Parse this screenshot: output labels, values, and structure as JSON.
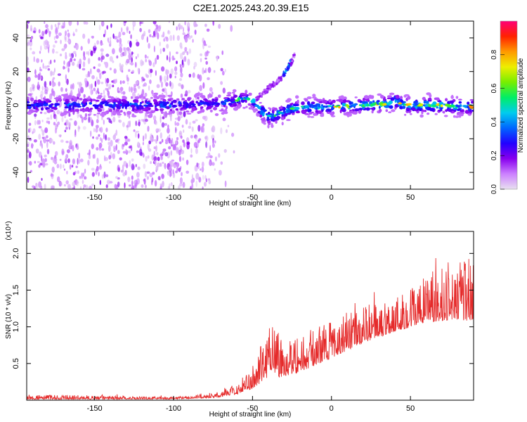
{
  "title": "C2E1.2025.243.20.39.E15",
  "colors": {
    "snr_line": "#e52b2b",
    "frame": "#000000",
    "colorbar_stops": [
      "#e8e0f0",
      "#cc80ff",
      "#8800ee",
      "#2200ff",
      "#0066ff",
      "#00ccee",
      "#00ee66",
      "#77ee00",
      "#eeee00",
      "#ff9900",
      "#ff2200",
      "#ff0077"
    ]
  },
  "chart_data": [
    {
      "type": "heatmap",
      "name": "spectrogram",
      "xlabel": "Height of straight line (km)",
      "ylabel": "Frequency (Hz)",
      "xlim": [
        -193,
        90
      ],
      "ylim": [
        -50,
        50
      ],
      "xticks": [
        -150,
        -100,
        -50,
        0,
        50
      ],
      "xtick_labels": [
        "-150",
        "-100",
        "-50",
        "0",
        "50"
      ],
      "yticks": [
        -40,
        -20,
        0,
        20,
        40
      ],
      "ytick_labels": [
        "-40",
        "-20",
        "0",
        "20",
        "40"
      ],
      "colorbar": {
        "label": "Normalized spectral amplitude",
        "range": [
          0,
          1
        ],
        "ticks": [
          0.0,
          0.2,
          0.4,
          0.6,
          0.8
        ],
        "tick_labels": [
          "0.0",
          "0.2",
          "0.4",
          "0.6",
          "0.8"
        ]
      },
      "main_trace": [
        {
          "x": -193,
          "y": 0
        },
        {
          "x": -150,
          "y": 0
        },
        {
          "x": -100,
          "y": 0
        },
        {
          "x": -70,
          "y": 1
        },
        {
          "x": -55,
          "y": 4
        },
        {
          "x": -48,
          "y": 2
        },
        {
          "x": -45,
          "y": -3
        },
        {
          "x": -40,
          "y": -7
        },
        {
          "x": -35,
          "y": -6
        },
        {
          "x": -25,
          "y": -2
        },
        {
          "x": -15,
          "y": -1
        },
        {
          "x": 0,
          "y": -1
        },
        {
          "x": 20,
          "y": 0
        },
        {
          "x": 38,
          "y": 1
        },
        {
          "x": 40,
          "y": 3
        },
        {
          "x": 45,
          "y": 0
        },
        {
          "x": 60,
          "y": 0
        },
        {
          "x": 90,
          "y": -1
        }
      ],
      "secondary_trace": [
        {
          "x": -48,
          "y": 3
        },
        {
          "x": -40,
          "y": 10
        },
        {
          "x": -32,
          "y": 16
        },
        {
          "x": -28,
          "y": 22
        },
        {
          "x": -23,
          "y": 30
        }
      ]
    },
    {
      "type": "line",
      "name": "snr",
      "xlabel": "Height of straight line (km)",
      "ylabel": "SNR (10 * v/v)",
      "multiplier_label": "(x10⁴)",
      "xlim": [
        -193,
        90
      ],
      "ylim": [
        0,
        2.3
      ],
      "xticks": [
        -150,
        -100,
        -50,
        0,
        50
      ],
      "xtick_labels": [
        "-150",
        "-100",
        "-50",
        "0",
        "50"
      ],
      "yticks": [
        0.5,
        1.0,
        1.5,
        2.0
      ],
      "ytick_labels": [
        "0.5",
        "1.0",
        "1.5",
        "2.0"
      ],
      "envelope": [
        {
          "x": -193,
          "base": 0.02,
          "amp": 0.06
        },
        {
          "x": -100,
          "base": 0.02,
          "amp": 0.03
        },
        {
          "x": -75,
          "base": 0.04,
          "amp": 0.05
        },
        {
          "x": -60,
          "base": 0.1,
          "amp": 0.12
        },
        {
          "x": -50,
          "base": 0.2,
          "amp": 0.3
        },
        {
          "x": -42,
          "base": 0.35,
          "amp": 0.55
        },
        {
          "x": -38,
          "base": 0.55,
          "amp": 0.9
        },
        {
          "x": -33,
          "base": 0.4,
          "amp": 0.6
        },
        {
          "x": -20,
          "base": 0.45,
          "amp": 0.45
        },
        {
          "x": 0,
          "base": 0.65,
          "amp": 0.5
        },
        {
          "x": 20,
          "base": 0.85,
          "amp": 0.45
        },
        {
          "x": 40,
          "base": 1.0,
          "amp": 0.45
        },
        {
          "x": 60,
          "base": 1.15,
          "amp": 0.6
        },
        {
          "x": 75,
          "base": 1.2,
          "amp": 0.7
        },
        {
          "x": 90,
          "base": 1.2,
          "amp": 0.8
        }
      ]
    }
  ]
}
